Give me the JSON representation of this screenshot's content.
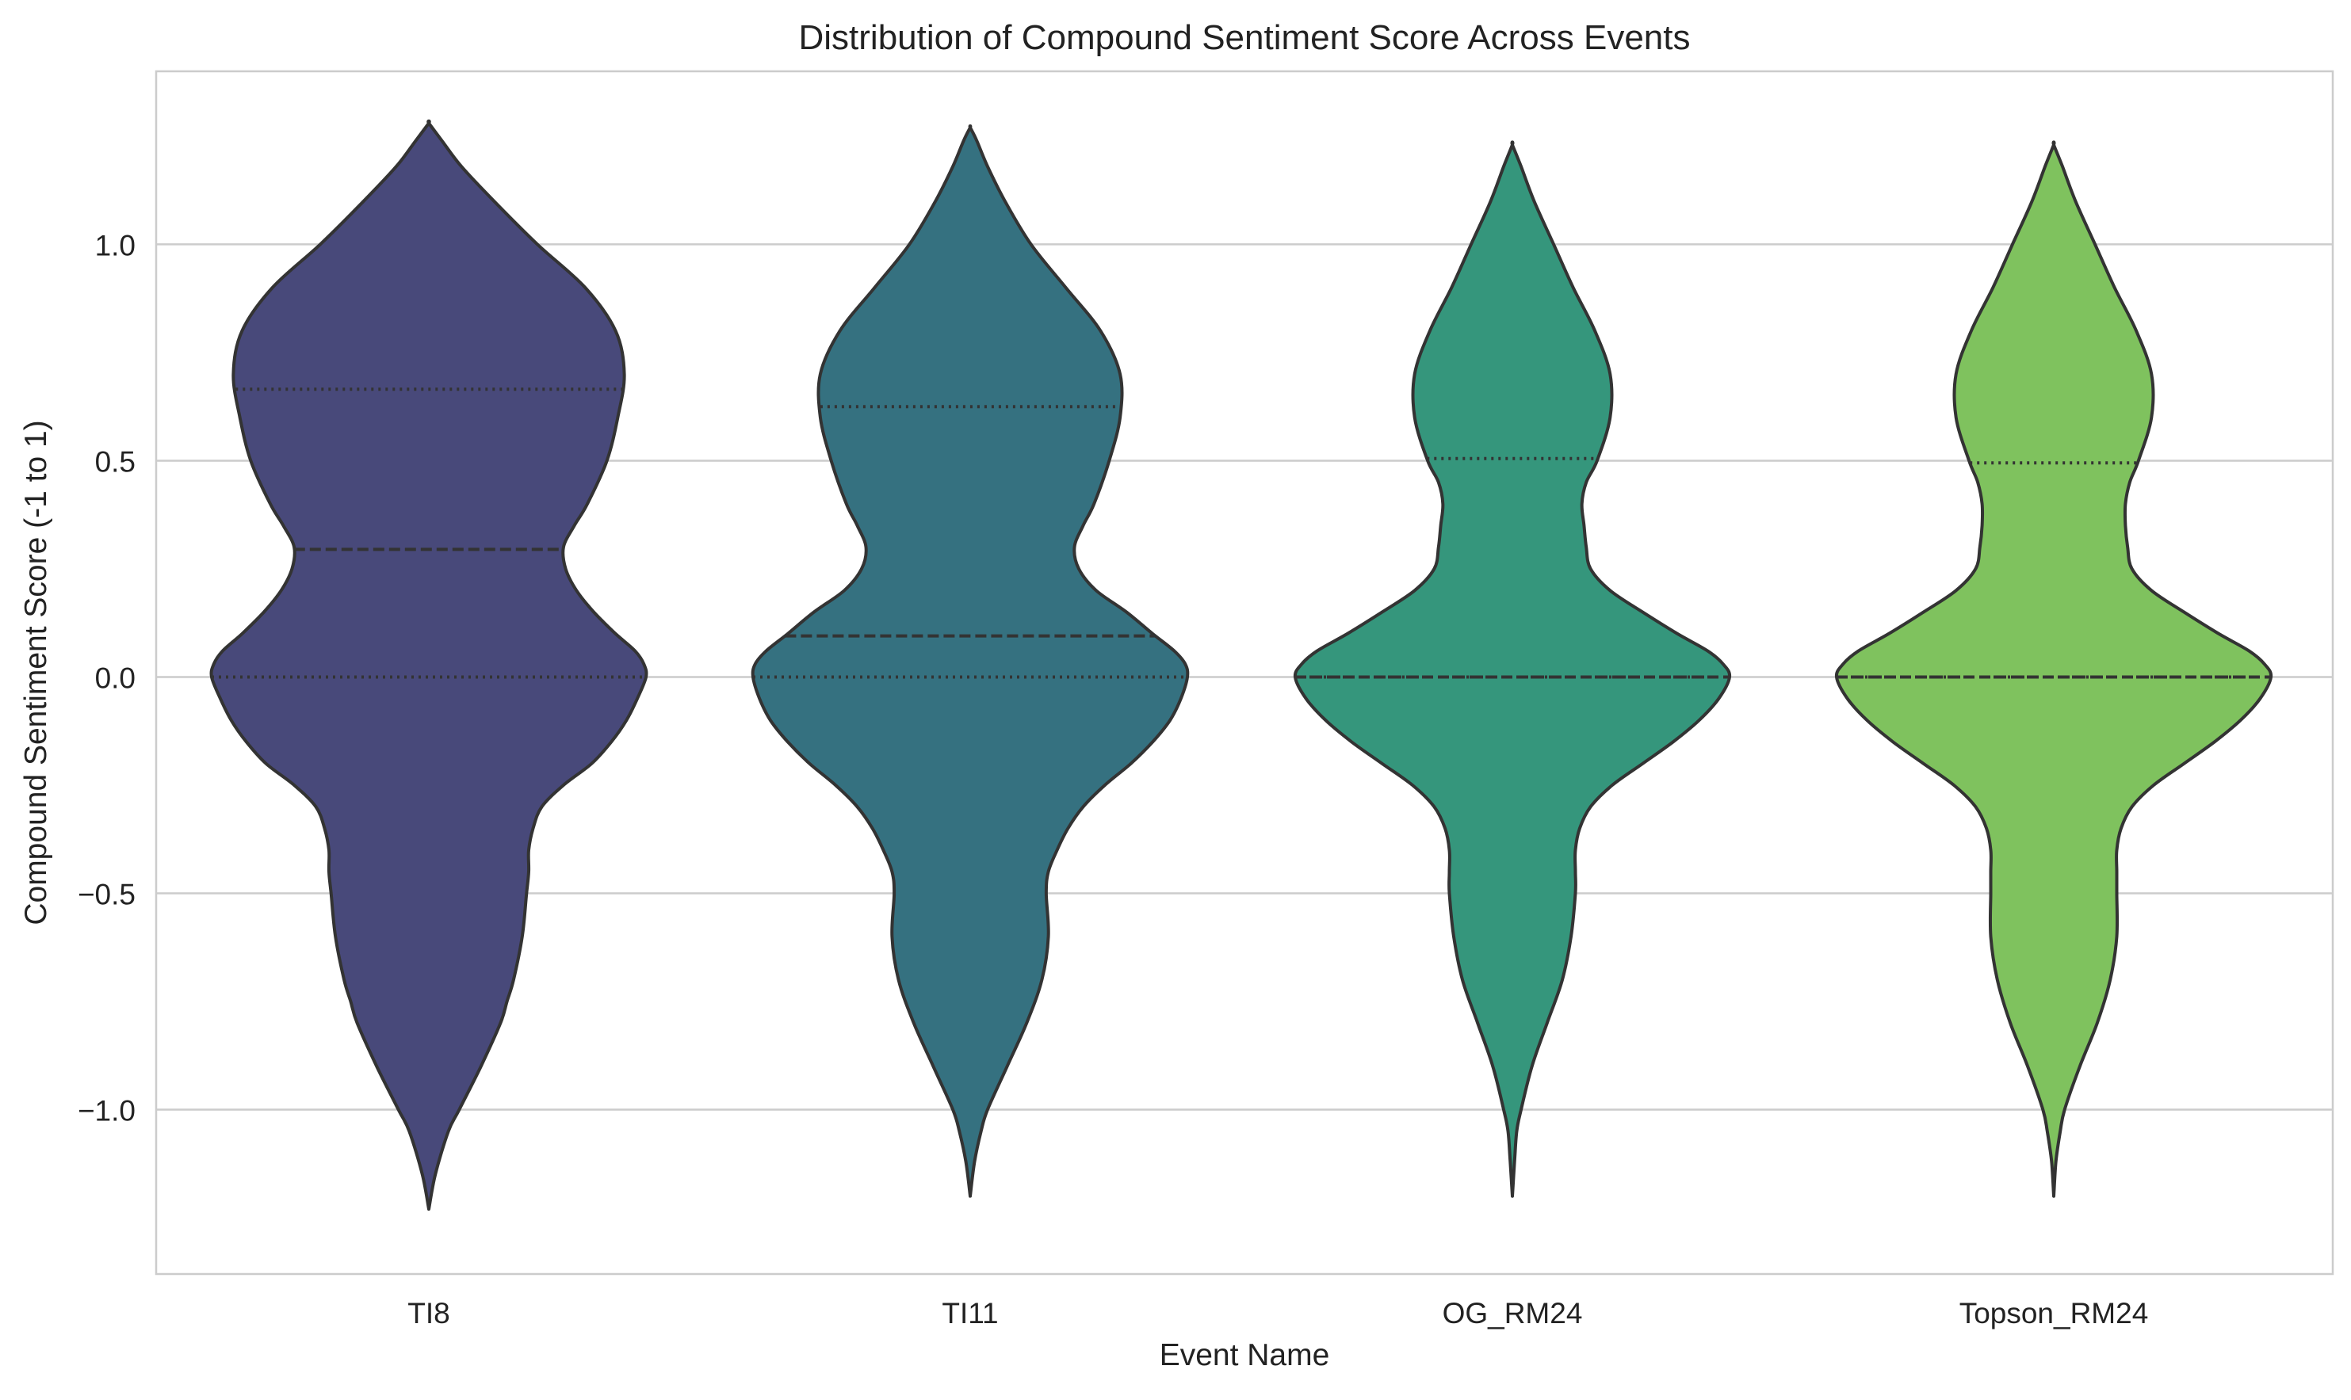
{
  "chart_data": {
    "type": "violin",
    "title": "Distribution of Compound Sentiment Score Across Events",
    "xlabel": "Event Name",
    "ylabel": "Compound Sentiment Score (-1 to 1)",
    "ylim": [
      -1.38,
      1.4
    ],
    "yticks": [
      -1.0,
      -0.5,
      0.0,
      0.5,
      1.0
    ],
    "ytick_labels": [
      "−1.0",
      "−0.5",
      "0.0",
      "0.5",
      "1.0"
    ],
    "grid": "horizontal",
    "categories": [
      "TI8",
      "TI11",
      "OG_RM24",
      "Topson_RM24"
    ],
    "colors": [
      "#48497a",
      "#357180",
      "#35967c",
      "#7fc25e"
    ],
    "inner": "quartile",
    "series": [
      {
        "category": "TI8",
        "quartiles": {
          "q1": 0.0,
          "median": 0.295,
          "q3": 0.665
        },
        "range": [
          -1.23,
          1.28
        ],
        "density_profile": [
          [
            -1.23,
            0.0
          ],
          [
            -1.15,
            0.03
          ],
          [
            -1.05,
            0.09
          ],
          [
            -1.0,
            0.14
          ],
          [
            -0.9,
            0.24
          ],
          [
            -0.8,
            0.33
          ],
          [
            -0.75,
            0.36
          ],
          [
            -0.7,
            0.39
          ],
          [
            -0.6,
            0.43
          ],
          [
            -0.5,
            0.45
          ],
          [
            -0.45,
            0.46
          ],
          [
            -0.4,
            0.46
          ],
          [
            -0.35,
            0.48
          ],
          [
            -0.3,
            0.52
          ],
          [
            -0.25,
            0.62
          ],
          [
            -0.2,
            0.75
          ],
          [
            -0.15,
            0.84
          ],
          [
            -0.1,
            0.91
          ],
          [
            -0.05,
            0.96
          ],
          [
            0.0,
            1.0
          ],
          [
            0.03,
            0.99
          ],
          [
            0.06,
            0.95
          ],
          [
            0.1,
            0.86
          ],
          [
            0.15,
            0.76
          ],
          [
            0.2,
            0.68
          ],
          [
            0.25,
            0.63
          ],
          [
            0.3,
            0.62
          ],
          [
            0.35,
            0.67
          ],
          [
            0.4,
            0.73
          ],
          [
            0.5,
            0.82
          ],
          [
            0.6,
            0.87
          ],
          [
            0.7,
            0.9
          ],
          [
            0.8,
            0.86
          ],
          [
            0.9,
            0.72
          ],
          [
            1.0,
            0.5
          ],
          [
            1.1,
            0.3
          ],
          [
            1.18,
            0.15
          ],
          [
            1.24,
            0.06
          ],
          [
            1.28,
            0.0
          ]
        ]
      },
      {
        "category": "TI11",
        "quartiles": {
          "q1": 0.0,
          "median": 0.095,
          "q3": 0.625
        },
        "range": [
          -1.2,
          1.27
        ],
        "density_profile": [
          [
            -1.2,
            0.0
          ],
          [
            -1.12,
            0.02
          ],
          [
            -1.05,
            0.05
          ],
          [
            -1.0,
            0.08
          ],
          [
            -0.9,
            0.17
          ],
          [
            -0.8,
            0.26
          ],
          [
            -0.7,
            0.33
          ],
          [
            -0.6,
            0.36
          ],
          [
            -0.5,
            0.35
          ],
          [
            -0.45,
            0.36
          ],
          [
            -0.4,
            0.4
          ],
          [
            -0.35,
            0.45
          ],
          [
            -0.3,
            0.52
          ],
          [
            -0.25,
            0.62
          ],
          [
            -0.2,
            0.74
          ],
          [
            -0.15,
            0.84
          ],
          [
            -0.1,
            0.92
          ],
          [
            -0.05,
            0.97
          ],
          [
            0.0,
            1.0
          ],
          [
            0.03,
            0.99
          ],
          [
            0.06,
            0.94
          ],
          [
            0.1,
            0.84
          ],
          [
            0.15,
            0.72
          ],
          [
            0.2,
            0.58
          ],
          [
            0.25,
            0.5
          ],
          [
            0.3,
            0.48
          ],
          [
            0.35,
            0.52
          ],
          [
            0.4,
            0.57
          ],
          [
            0.5,
            0.64
          ],
          [
            0.6,
            0.69
          ],
          [
            0.7,
            0.69
          ],
          [
            0.8,
            0.6
          ],
          [
            0.9,
            0.44
          ],
          [
            1.0,
            0.28
          ],
          [
            1.1,
            0.16
          ],
          [
            1.18,
            0.08
          ],
          [
            1.24,
            0.03
          ],
          [
            1.27,
            0.0
          ]
        ]
      },
      {
        "category": "OG_RM24",
        "quartiles": {
          "q1": 0.0,
          "median": 0.0,
          "q3": 0.505
        },
        "range": [
          -1.2,
          1.23
        ],
        "density_profile": [
          [
            -1.2,
            0.0
          ],
          [
            -1.12,
            0.01
          ],
          [
            -1.05,
            0.02
          ],
          [
            -1.0,
            0.04
          ],
          [
            -0.9,
            0.09
          ],
          [
            -0.8,
            0.16
          ],
          [
            -0.7,
            0.23
          ],
          [
            -0.6,
            0.27
          ],
          [
            -0.5,
            0.29
          ],
          [
            -0.45,
            0.29
          ],
          [
            -0.4,
            0.29
          ],
          [
            -0.35,
            0.31
          ],
          [
            -0.3,
            0.36
          ],
          [
            -0.25,
            0.46
          ],
          [
            -0.2,
            0.6
          ],
          [
            -0.15,
            0.74
          ],
          [
            -0.1,
            0.86
          ],
          [
            -0.05,
            0.95
          ],
          [
            0.0,
            1.0
          ],
          [
            0.03,
            0.97
          ],
          [
            0.06,
            0.9
          ],
          [
            0.1,
            0.76
          ],
          [
            0.15,
            0.6
          ],
          [
            0.2,
            0.45
          ],
          [
            0.25,
            0.36
          ],
          [
            0.3,
            0.34
          ],
          [
            0.35,
            0.33
          ],
          [
            0.4,
            0.32
          ],
          [
            0.45,
            0.34
          ],
          [
            0.5,
            0.39
          ],
          [
            0.6,
            0.45
          ],
          [
            0.7,
            0.45
          ],
          [
            0.8,
            0.38
          ],
          [
            0.9,
            0.28
          ],
          [
            1.0,
            0.19
          ],
          [
            1.1,
            0.1
          ],
          [
            1.18,
            0.04
          ],
          [
            1.23,
            0.0
          ]
        ]
      },
      {
        "category": "Topson_RM24",
        "quartiles": {
          "q1": 0.0,
          "median": 0.0,
          "q3": 0.495
        },
        "range": [
          -1.2,
          1.23
        ],
        "density_profile": [
          [
            -1.2,
            0.0
          ],
          [
            -1.12,
            0.01
          ],
          [
            -1.05,
            0.03
          ],
          [
            -1.0,
            0.05
          ],
          [
            -0.9,
            0.12
          ],
          [
            -0.8,
            0.2
          ],
          [
            -0.7,
            0.26
          ],
          [
            -0.6,
            0.29
          ],
          [
            -0.5,
            0.29
          ],
          [
            -0.45,
            0.29
          ],
          [
            -0.4,
            0.29
          ],
          [
            -0.35,
            0.31
          ],
          [
            -0.3,
            0.36
          ],
          [
            -0.25,
            0.46
          ],
          [
            -0.2,
            0.6
          ],
          [
            -0.15,
            0.74
          ],
          [
            -0.1,
            0.86
          ],
          [
            -0.05,
            0.95
          ],
          [
            0.0,
            1.0
          ],
          [
            0.03,
            0.97
          ],
          [
            0.06,
            0.9
          ],
          [
            0.1,
            0.76
          ],
          [
            0.15,
            0.6
          ],
          [
            0.2,
            0.45
          ],
          [
            0.25,
            0.36
          ],
          [
            0.3,
            0.34
          ],
          [
            0.35,
            0.33
          ],
          [
            0.4,
            0.33
          ],
          [
            0.45,
            0.35
          ],
          [
            0.5,
            0.39
          ],
          [
            0.6,
            0.45
          ],
          [
            0.7,
            0.45
          ],
          [
            0.8,
            0.38
          ],
          [
            0.9,
            0.28
          ],
          [
            1.0,
            0.19
          ],
          [
            1.1,
            0.1
          ],
          [
            1.18,
            0.04
          ],
          [
            1.23,
            0.0
          ]
        ]
      }
    ]
  }
}
